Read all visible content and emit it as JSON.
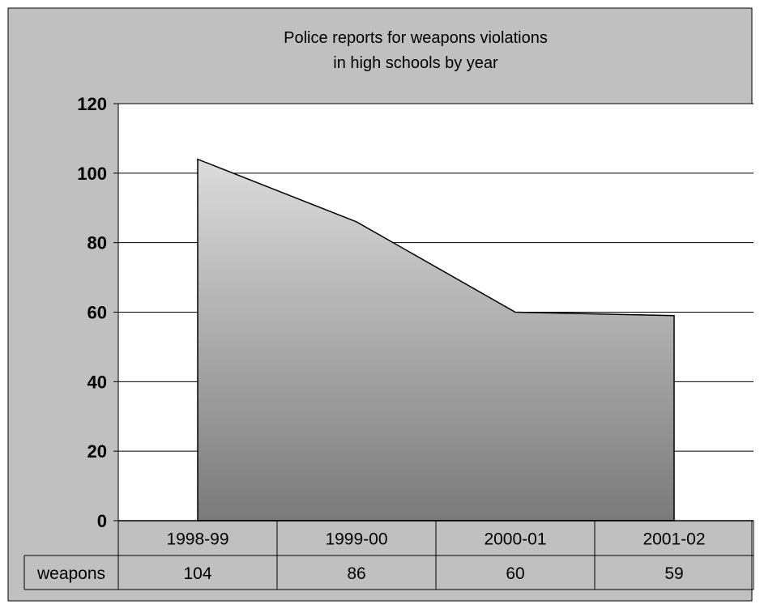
{
  "chart_data": {
    "type": "area",
    "title_lines": [
      "Police reports for weapons violations",
      "in high schools by year"
    ],
    "categories": [
      "1998-99",
      "1999-00",
      "2000-01",
      "2001-02"
    ],
    "series": [
      {
        "name": "weapons",
        "values": [
          104,
          86,
          60,
          59
        ]
      }
    ],
    "value_labels": [
      "104",
      "86",
      "60",
      "59"
    ],
    "ylim": [
      0,
      120
    ],
    "yticks": [
      "0",
      "20",
      "40",
      "60",
      "80",
      "100",
      "120"
    ],
    "grid": true,
    "legend": "data table below chart"
  },
  "colors": {
    "background": "#c0c0c0",
    "plot_area": "#ffffff",
    "gridline": "#000000",
    "fill_top": "#dcdcdc",
    "fill_bottom": "#7a7a7a",
    "stroke": "#000000"
  }
}
